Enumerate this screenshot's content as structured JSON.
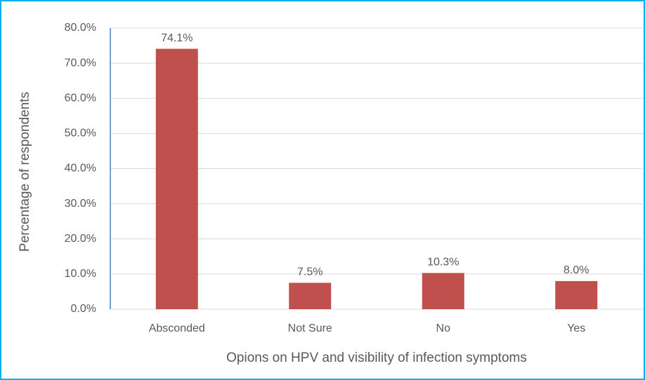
{
  "chart_data": {
    "type": "bar",
    "categories": [
      "Absconded",
      "Not Sure",
      "No",
      "Yes"
    ],
    "values": [
      74.1,
      7.5,
      10.3,
      8.0
    ],
    "value_labels": [
      "74.1%",
      "7.5%",
      "10.3%",
      "8.0%"
    ],
    "color": "#c0504d",
    "y_label": "Percentage of respondents",
    "x_label": "Opions on HPV and visibility of infection symptoms",
    "ylim": [
      0,
      80
    ],
    "yticks": [
      {
        "value": 0,
        "label": "0.0%"
      },
      {
        "value": 10,
        "label": "10.0%"
      },
      {
        "value": 20,
        "label": "20.0%"
      },
      {
        "value": 30,
        "label": "30.0%"
      },
      {
        "value": 40,
        "label": "40.0%"
      },
      {
        "value": 50,
        "label": "50.0%"
      },
      {
        "value": 60,
        "label": "60.0%"
      },
      {
        "value": 70,
        "label": "70.0%"
      },
      {
        "value": 80,
        "label": "80.0%"
      }
    ],
    "grid": true
  }
}
